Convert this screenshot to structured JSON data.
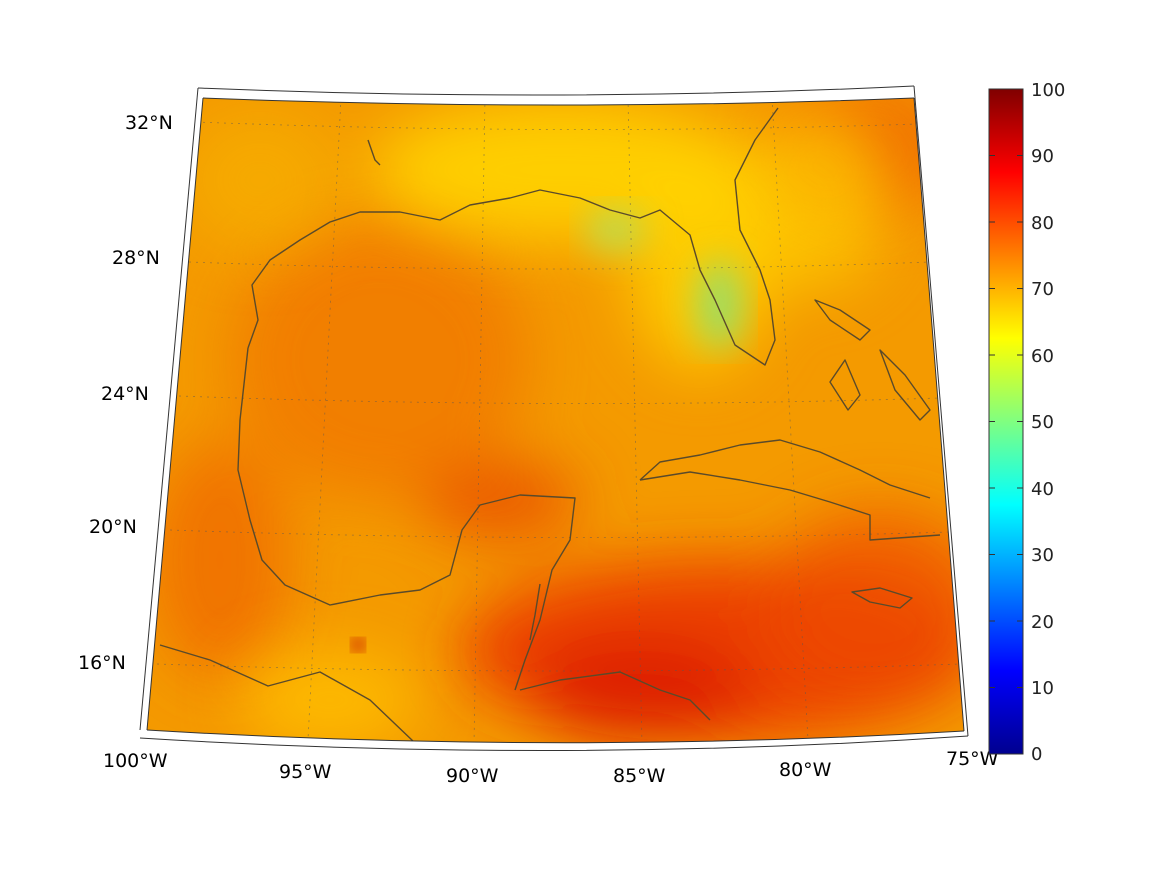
{
  "map": {
    "lon_labels": [
      "100°W",
      "95°W",
      "90°W",
      "85°W",
      "80°W",
      "75°W"
    ],
    "lat_labels": [
      "32°N",
      "28°N",
      "24°N",
      "20°N",
      "16°N"
    ]
  },
  "colorbar": {
    "colormap": "jet",
    "range": [
      0,
      100
    ],
    "labels": [
      "100",
      "90",
      "80",
      "70",
      "60",
      "50",
      "40",
      "30",
      "20",
      "10",
      "0"
    ],
    "colors": [
      "#00008f",
      "#0000ff",
      "#0080ff",
      "#00ffff",
      "#80ff80",
      "#ffff00",
      "#ff8000",
      "#ff0000",
      "#800000"
    ]
  },
  "field": {
    "base_color": "#f5a000",
    "warm_color": "#e81800",
    "cool_color": "#7fe070",
    "mid_color": "#ffd200"
  }
}
